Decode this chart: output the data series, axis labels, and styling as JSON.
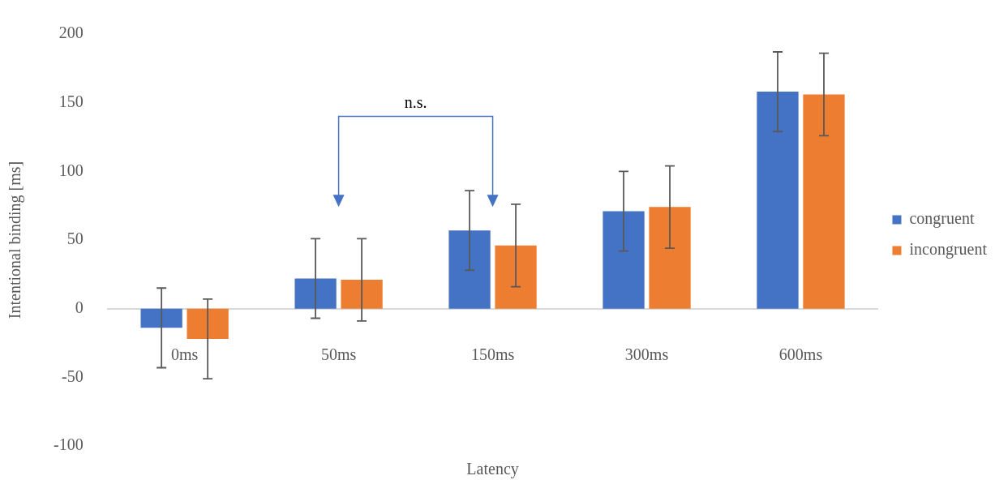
{
  "chart_data": {
    "type": "bar",
    "xlabel": "Latency",
    "ylabel": "Intentional binding [ms]",
    "categories": [
      "0ms",
      "50ms",
      "150ms",
      "300ms",
      "600ms"
    ],
    "series": [
      {
        "name": "congruent",
        "color": "#4472c4",
        "values": [
          -14,
          22,
          57,
          71,
          158
        ],
        "errors": [
          29,
          29,
          29,
          29,
          29
        ]
      },
      {
        "name": "incongruent",
        "color": "#ed7d31",
        "values": [
          -22,
          21,
          46,
          74,
          156
        ],
        "errors": [
          29,
          30,
          30,
          30,
          30
        ]
      }
    ],
    "ylim": [
      -100,
      200
    ],
    "yticks": [
      -100,
      -50,
      0,
      50,
      100,
      150,
      200
    ],
    "grid": false,
    "legend": "right",
    "annotations": [
      "n.s."
    ]
  }
}
